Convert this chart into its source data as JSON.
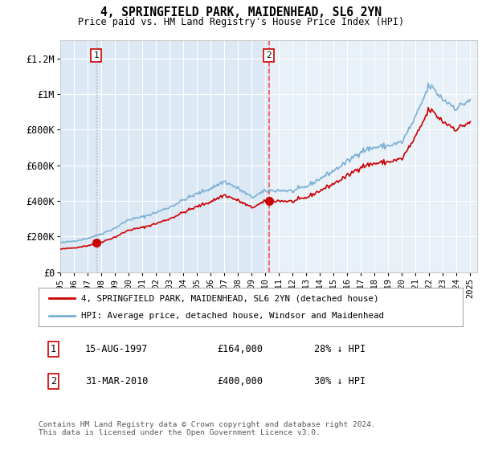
{
  "title": "4, SPRINGFIELD PARK, MAIDENHEAD, SL6 2YN",
  "subtitle": "Price paid vs. HM Land Registry's House Price Index (HPI)",
  "hpi_color": "#7ab0d4",
  "sale_color": "#cc0000",
  "vline1_color": "#999999",
  "vline2_color": "#ff4444",
  "sale_labels": [
    "1",
    "2"
  ],
  "annotation1_date": "15-AUG-1997",
  "annotation1_price": "£164,000",
  "annotation1_hpi": "28% ↓ HPI",
  "annotation2_date": "31-MAR-2010",
  "annotation2_price": "£400,000",
  "annotation2_hpi": "30% ↓ HPI",
  "legend_label1": "4, SPRINGFIELD PARK, MAIDENHEAD, SL6 2YN (detached house)",
  "legend_label2": "HPI: Average price, detached house, Windsor and Maidenhead",
  "footer": "Contains HM Land Registry data © Crown copyright and database right 2024.\nThis data is licensed under the Open Government Licence v3.0.",
  "ylim": [
    0,
    1300000
  ],
  "yticks": [
    0,
    200000,
    400000,
    600000,
    800000,
    1000000,
    1200000
  ],
  "ytick_labels": [
    "£0",
    "£200K",
    "£400K",
    "£600K",
    "£800K",
    "£1M",
    "£1.2M"
  ],
  "plot_bg": "#e8f0f8",
  "shade_bg": "#dce8f4",
  "sale1_date": 1997.62,
  "sale1_price": 164000,
  "sale2_date": 2010.25,
  "sale2_price": 400000,
  "xmin": 1995.0,
  "xmax": 2025.5
}
